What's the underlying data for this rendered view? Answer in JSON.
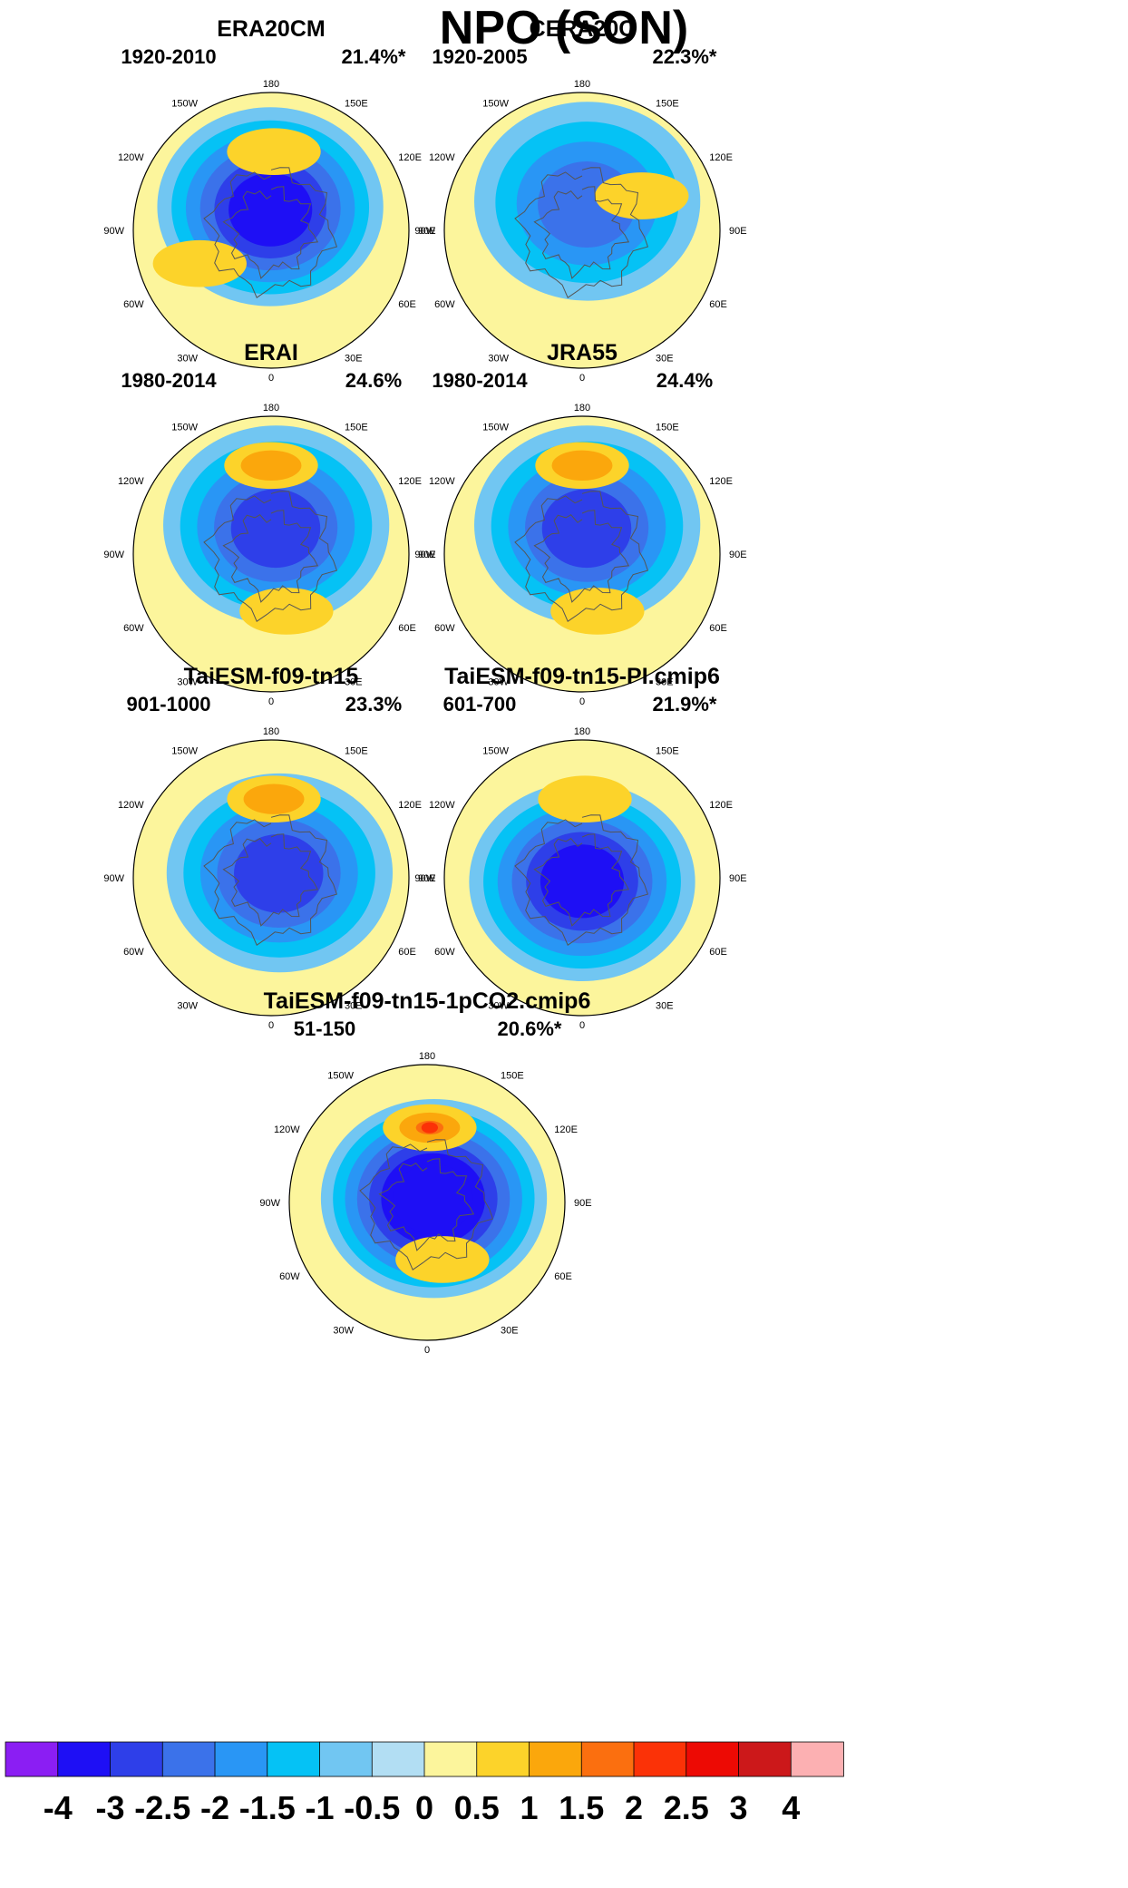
{
  "title": "NPO (SON)",
  "chart_data": {
    "type": "heatmap",
    "projection": "north-polar-stereographic",
    "panels": [
      {
        "title": "ERA20CM",
        "period": "1920-2010",
        "variance": "21.4%*",
        "min_value": -3.0,
        "max_value": 0.9,
        "features": [
          {
            "sign": "negative",
            "center_lat": 78,
            "center_lon": -178,
            "level": -3.0
          },
          {
            "sign": "positive",
            "center_lat": 50,
            "center_lon": 178,
            "level": 0.9
          },
          {
            "sign": "positive",
            "center_lat": 50,
            "center_lon": -65,
            "level": 0.7
          }
        ]
      },
      {
        "title": "CERA20C",
        "period": "1920-2005",
        "variance": "22.3%*",
        "min_value": -2.0,
        "max_value": 0.8,
        "features": [
          {
            "sign": "negative",
            "center_lat": 75,
            "center_lon": 170,
            "level": -2.0
          },
          {
            "sign": "positive",
            "center_lat": 55,
            "center_lon": 120,
            "level": 0.8
          }
        ]
      },
      {
        "title": "ERAI",
        "period": "1980-2014",
        "variance": "24.6%",
        "min_value": -2.8,
        "max_value": 1.0,
        "features": [
          {
            "sign": "negative",
            "center_lat": 75,
            "center_lon": 170,
            "level": -2.8
          },
          {
            "sign": "positive",
            "center_lat": 45,
            "center_lon": 180,
            "level": 1.0
          },
          {
            "sign": "positive",
            "center_lat": 60,
            "center_lon": 15,
            "level": 0.6
          }
        ]
      },
      {
        "title": "JRA55",
        "period": "1980-2014",
        "variance": "24.4%",
        "min_value": -2.8,
        "max_value": 1.0,
        "features": [
          {
            "sign": "negative",
            "center_lat": 75,
            "center_lon": 170,
            "level": -2.8
          },
          {
            "sign": "positive",
            "center_lat": 45,
            "center_lon": 180,
            "level": 1.0
          },
          {
            "sign": "positive",
            "center_lat": 60,
            "center_lon": 15,
            "level": 0.6
          }
        ]
      },
      {
        "title": "TaiESM-f09-tn15",
        "period": "901-1000",
        "variance": "23.3%",
        "min_value": -2.5,
        "max_value": 1.2,
        "features": [
          {
            "sign": "negative",
            "center_lat": 85,
            "center_lon": 120,
            "level": -2.5
          },
          {
            "sign": "positive",
            "center_lat": 50,
            "center_lon": 178,
            "level": 1.2
          }
        ]
      },
      {
        "title": "TaiESM-f09-tn15-PI.cmip6",
        "period": "601-700",
        "variance": "21.9%*",
        "min_value": -3.0,
        "max_value": 0.6,
        "features": [
          {
            "sign": "negative",
            "center_lat": 88,
            "center_lon": 0,
            "level": -3.0
          },
          {
            "sign": "positive",
            "center_lat": 50,
            "center_lon": 178,
            "level": 0.6
          }
        ]
      },
      {
        "title": "TaiESM-f09-tn15-1pCO2.cmip6",
        "period": "51-150",
        "variance": "20.6%*",
        "min_value": -3.5,
        "max_value": 2.0,
        "features": [
          {
            "sign": "negative",
            "center_lat": 86,
            "center_lon": 120,
            "level": -3.5
          },
          {
            "sign": "positive",
            "center_lat": 52,
            "center_lon": 178,
            "level": 2.0
          },
          {
            "sign": "positive",
            "center_lat": 60,
            "center_lon": 15,
            "level": 0.8
          }
        ]
      }
    ],
    "lon_labels": [
      "180",
      "150E",
      "120E",
      "90E",
      "60E",
      "30E",
      "0",
      "30W",
      "60W",
      "90W",
      "120W",
      "150W"
    ],
    "colorbar": {
      "labels": [
        "-4",
        "-3",
        "-2.5",
        "-2",
        "-1.5",
        "-1",
        "-0.5",
        "0",
        "0.5",
        "1",
        "1.5",
        "2",
        "2.5",
        "3",
        "4"
      ],
      "colors": [
        "#8b1ef3",
        "#1e0ff5",
        "#2e3fe9",
        "#3b72ea",
        "#2996f5",
        "#05c2f5",
        "#71c6f2",
        "#b2def3",
        "#fcf59c",
        "#fcd32a",
        "#fba70c",
        "#fb6f0f",
        "#fb3207",
        "#ed0a04",
        "#cc181a",
        "#fcb0b2"
      ]
    }
  }
}
